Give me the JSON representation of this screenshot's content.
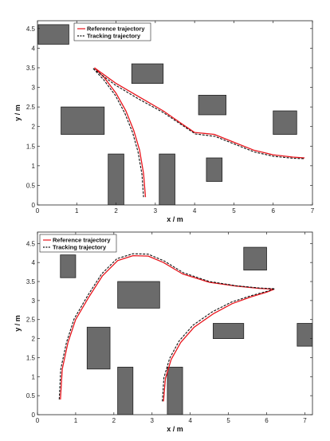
{
  "chart_data": [
    {
      "type": "line",
      "title": "",
      "xlabel": "x / m",
      "ylabel": "y / m",
      "xlim": [
        0,
        7
      ],
      "ylim": [
        0,
        4.7
      ],
      "xticks": [
        "0",
        "1",
        "2",
        "3",
        "4",
        "5",
        "6",
        "7"
      ],
      "yticks": [
        "0",
        "0.5",
        "1",
        "1.5",
        "2",
        "2.5",
        "3",
        "3.5",
        "4",
        "4.5"
      ],
      "legend": [
        "Reference trajectory",
        "Tracking trajectory"
      ],
      "legend_position": "top-left",
      "series_colors": [
        "#e8141b",
        "#111111"
      ],
      "obstacle_color": "#6b6b6b",
      "obstacles": [
        {
          "x0": 0.02,
          "x1": 0.8,
          "y0": 4.1,
          "y1": 4.6
        },
        {
          "x0": 0.6,
          "x1": 1.7,
          "y0": 1.8,
          "y1": 2.5
        },
        {
          "x0": 1.8,
          "x1": 2.2,
          "y0": 0.0,
          "y1": 1.3
        },
        {
          "x0": 2.4,
          "x1": 3.2,
          "y0": 3.1,
          "y1": 3.6
        },
        {
          "x0": 3.1,
          "x1": 3.5,
          "y0": 0.0,
          "y1": 1.3
        },
        {
          "x0": 4.1,
          "x1": 4.8,
          "y0": 2.3,
          "y1": 2.8
        },
        {
          "x0": 4.3,
          "x1": 4.7,
          "y0": 0.6,
          "y1": 1.2
        },
        {
          "x0": 6.0,
          "x1": 6.6,
          "y0": 1.8,
          "y1": 2.4
        }
      ],
      "series": [
        {
          "name": "Reference trajectory",
          "style": "solid",
          "paths": [
            [
              [
                1.45,
                3.5
              ],
              [
                1.7,
                3.25
              ],
              [
                2.0,
                2.85
              ],
              [
                2.25,
                2.4
              ],
              [
                2.45,
                1.9
              ],
              [
                2.6,
                1.4
              ],
              [
                2.7,
                0.8
              ],
              [
                2.75,
                0.2
              ]
            ],
            [
              [
                1.45,
                3.5
              ],
              [
                2.0,
                3.1
              ],
              [
                2.6,
                2.75
              ],
              [
                3.2,
                2.4
              ],
              [
                3.7,
                2.05
              ],
              [
                4.0,
                1.85
              ],
              [
                4.5,
                1.8
              ],
              [
                5.0,
                1.6
              ],
              [
                5.5,
                1.4
              ],
              [
                6.0,
                1.28
              ],
              [
                6.5,
                1.22
              ],
              [
                6.8,
                1.2
              ]
            ]
          ]
        },
        {
          "name": "Tracking trajectory",
          "style": "dashed",
          "paths": [
            [
              [
                1.42,
                3.48
              ],
              [
                1.68,
                3.2
              ],
              [
                1.98,
                2.8
              ],
              [
                2.22,
                2.35
              ],
              [
                2.42,
                1.85
              ],
              [
                2.56,
                1.35
              ],
              [
                2.66,
                0.78
              ],
              [
                2.7,
                0.2
              ]
            ],
            [
              [
                1.42,
                3.48
              ],
              [
                1.98,
                3.06
              ],
              [
                2.58,
                2.7
              ],
              [
                3.2,
                2.36
              ],
              [
                3.72,
                2.01
              ],
              [
                4.02,
                1.81
              ],
              [
                4.52,
                1.75
              ],
              [
                5.02,
                1.55
              ],
              [
                5.52,
                1.35
              ],
              [
                6.02,
                1.24
              ],
              [
                6.52,
                1.19
              ],
              [
                6.8,
                1.18
              ]
            ]
          ]
        }
      ]
    },
    {
      "type": "line",
      "title": "",
      "xlabel": "x / m",
      "ylabel": "y / m",
      "xlim": [
        0,
        7.2
      ],
      "ylim": [
        0,
        4.8
      ],
      "xticks": [
        "0",
        "1",
        "2",
        "3",
        "4",
        "5",
        "6",
        "7"
      ],
      "yticks": [
        "0",
        "0.5",
        "1",
        "1.5",
        "2",
        "2.5",
        "3",
        "3.5",
        "4",
        "4.5"
      ],
      "legend": [
        "Reference trajectory",
        "Tracking trajectory"
      ],
      "legend_position": "top-left",
      "series_colors": [
        "#e8141b",
        "#111111"
      ],
      "obstacle_color": "#6b6b6b",
      "obstacles": [
        {
          "x0": 0.6,
          "x1": 1.0,
          "y0": 3.6,
          "y1": 4.2
        },
        {
          "x0": 1.3,
          "x1": 1.9,
          "y0": 1.2,
          "y1": 2.3
        },
        {
          "x0": 2.1,
          "x1": 3.2,
          "y0": 2.8,
          "y1": 3.5
        },
        {
          "x0": 2.1,
          "x1": 2.5,
          "y0": 0.0,
          "y1": 1.25
        },
        {
          "x0": 3.4,
          "x1": 3.8,
          "y0": 0.0,
          "y1": 1.25
        },
        {
          "x0": 4.6,
          "x1": 5.4,
          "y0": 2.0,
          "y1": 2.4
        },
        {
          "x0": 5.4,
          "x1": 6.0,
          "y0": 3.8,
          "y1": 4.4
        },
        {
          "x0": 6.8,
          "x1": 7.2,
          "y0": 1.8,
          "y1": 2.4
        }
      ],
      "series": [
        {
          "name": "Reference trajectory",
          "style": "solid",
          "paths": [
            [
              [
                0.6,
                0.4
              ],
              [
                0.65,
                1.2
              ],
              [
                0.8,
                1.9
              ],
              [
                1.0,
                2.5
              ],
              [
                1.35,
                3.1
              ],
              [
                1.7,
                3.65
              ],
              [
                2.1,
                4.05
              ],
              [
                2.5,
                4.18
              ],
              [
                2.9,
                4.17
              ],
              [
                3.3,
                4.0
              ],
              [
                3.8,
                3.7
              ],
              [
                4.5,
                3.48
              ],
              [
                5.2,
                3.38
              ],
              [
                5.8,
                3.32
              ],
              [
                6.2,
                3.3
              ]
            ],
            [
              [
                3.3,
                0.35
              ],
              [
                3.35,
                0.95
              ],
              [
                3.5,
                1.45
              ],
              [
                3.75,
                1.9
              ],
              [
                4.1,
                2.3
              ],
              [
                4.6,
                2.65
              ],
              [
                5.1,
                2.92
              ],
              [
                5.6,
                3.1
              ],
              [
                6.0,
                3.22
              ],
              [
                6.2,
                3.3
              ]
            ]
          ]
        },
        {
          "name": "Tracking trajectory",
          "style": "dashed",
          "paths": [
            [
              [
                0.57,
                0.4
              ],
              [
                0.61,
                1.2
              ],
              [
                0.76,
                1.9
              ],
              [
                0.96,
                2.52
              ],
              [
                1.32,
                3.14
              ],
              [
                1.68,
                3.7
              ],
              [
                2.08,
                4.1
              ],
              [
                2.5,
                4.23
              ],
              [
                2.9,
                4.22
              ],
              [
                3.32,
                4.04
              ],
              [
                3.82,
                3.73
              ],
              [
                4.5,
                3.5
              ],
              [
                5.2,
                3.39
              ],
              [
                5.8,
                3.33
              ],
              [
                6.2,
                3.31
              ]
            ],
            [
              [
                3.27,
                0.35
              ],
              [
                3.31,
                0.97
              ],
              [
                3.46,
                1.48
              ],
              [
                3.71,
                1.94
              ],
              [
                4.07,
                2.35
              ],
              [
                4.57,
                2.7
              ],
              [
                5.08,
                2.96
              ],
              [
                5.6,
                3.13
              ],
              [
                6.0,
                3.24
              ],
              [
                6.2,
                3.31
              ]
            ]
          ]
        }
      ]
    }
  ]
}
